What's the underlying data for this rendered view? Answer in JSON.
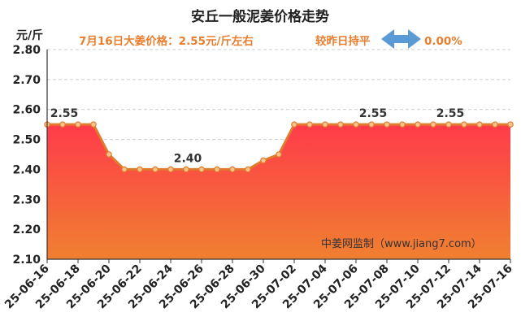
{
  "title": "安丘一般泥姜价格走势",
  "subtitle": {
    "price_text": "7月16日大姜价格：2.55元/斤左右",
    "change_label": "较昨日持平",
    "change_value": "0.00%",
    "change_icon": "left-right-arrow-icon"
  },
  "watermark": "中姜网监制（www.jiang7.com）",
  "colors": {
    "title": "#222222",
    "subtitle": "#e87e2e",
    "arrow": "#5b9bd5",
    "line": "#e07b2e",
    "area_top": "#ff3b4a",
    "area_bottom": "#f08030",
    "grid": "#cccccc"
  },
  "chart_data": {
    "type": "area",
    "ylabel": "元/斤",
    "ylim": [
      2.1,
      2.8
    ],
    "yticks": [
      "2.80",
      "2.70",
      "2.60",
      "2.50",
      "2.40",
      "2.30",
      "2.20",
      "2.10"
    ],
    "x": [
      "25-06-16",
      "25-06-17",
      "25-06-18",
      "25-06-19",
      "25-06-20",
      "25-06-21",
      "25-06-22",
      "25-06-23",
      "25-06-24",
      "25-06-25",
      "25-06-26",
      "25-06-27",
      "25-06-28",
      "25-06-29",
      "25-06-30",
      "25-07-01",
      "25-07-02",
      "25-07-03",
      "25-07-04",
      "25-07-05",
      "25-07-06",
      "25-07-07",
      "25-07-08",
      "25-07-09",
      "25-07-10",
      "25-07-11",
      "25-07-12",
      "25-07-13",
      "25-07-14",
      "25-07-15",
      "25-07-16"
    ],
    "xtick_labels": [
      "25-06-16",
      "25-06-18",
      "25-06-20",
      "25-06-22",
      "25-06-24",
      "25-06-26",
      "25-06-28",
      "25-06-30",
      "25-07-02",
      "25-07-04",
      "25-07-06",
      "25-07-08",
      "25-07-10",
      "25-07-12",
      "25-07-14",
      "25-07-16"
    ],
    "values": [
      2.55,
      2.55,
      2.55,
      2.55,
      2.45,
      2.4,
      2.4,
      2.4,
      2.4,
      2.4,
      2.4,
      2.4,
      2.4,
      2.4,
      2.43,
      2.45,
      2.55,
      2.55,
      2.55,
      2.55,
      2.55,
      2.55,
      2.55,
      2.55,
      2.55,
      2.55,
      2.55,
      2.55,
      2.55,
      2.55,
      2.55
    ],
    "data_labels": [
      {
        "index": 1,
        "text": "2.55"
      },
      {
        "index": 9,
        "text": "2.40"
      },
      {
        "index": 21,
        "text": "2.55"
      },
      {
        "index": 26,
        "text": "2.55"
      }
    ],
    "grid": true
  }
}
